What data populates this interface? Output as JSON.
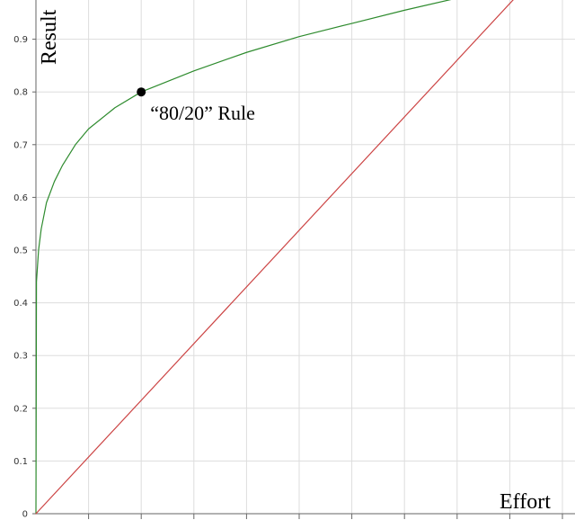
{
  "chart_data": {
    "type": "line",
    "title": "",
    "xlabel": "Effort",
    "ylabel": "Result",
    "xlim": [
      0,
      1
    ],
    "ylim": [
      0,
      1
    ],
    "grid": true,
    "y_ticks": [
      "0",
      "0.1",
      "0.2",
      "0.3",
      "0.4",
      "0.5",
      "0.6",
      "0.7",
      "0.8",
      "0.9"
    ],
    "series": [
      {
        "color": "#2e8b2e",
        "x": [
          0,
          0.0005,
          0.001,
          0.003,
          0.005,
          0.01,
          0.02,
          0.035,
          0.05,
          0.075,
          0.1,
          0.15,
          0.2,
          0.3,
          0.4,
          0.5,
          0.6,
          0.7,
          0.8,
          0.85
        ],
        "y": [
          0,
          0.21,
          0.44,
          0.47,
          0.5,
          0.54,
          0.59,
          0.63,
          0.66,
          0.7,
          0.73,
          0.77,
          0.8,
          0.84,
          0.875,
          0.905,
          0.93,
          0.955,
          0.978,
          0.99
        ]
      },
      {
        "color": "#cc4444",
        "x": [
          0,
          0.93
        ],
        "y": [
          0,
          1.0
        ]
      }
    ],
    "points": [
      {
        "x": 0.2,
        "y": 0.8,
        "label": "“80/20” Rule"
      }
    ]
  }
}
